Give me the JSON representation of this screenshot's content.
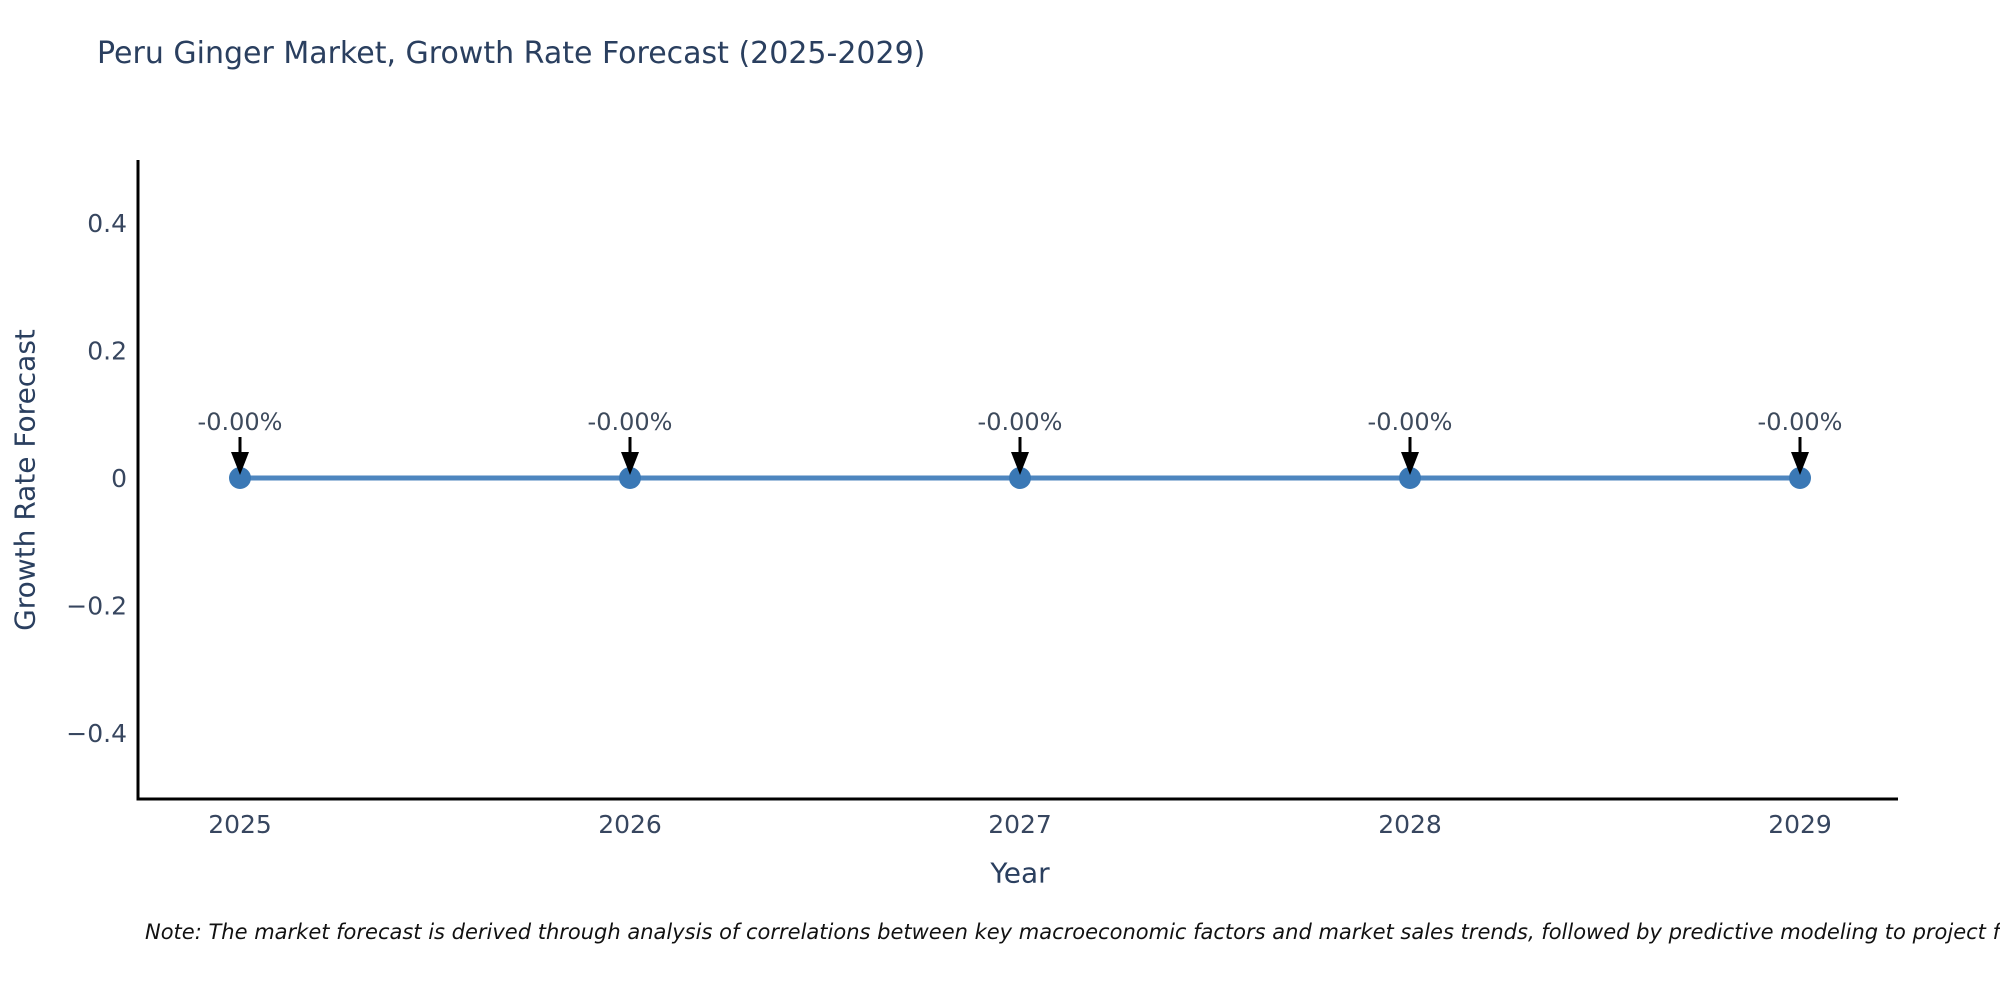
{
  "title": "Peru Ginger Market, Growth Rate Forecast (2025-2029)",
  "note": "Note: The market forecast is derived through analysis of correlations between key macroeconomic factors and market sales trends, followed by predictive modeling to project future sa",
  "chart_data": {
    "type": "line",
    "title": "Peru Ginger Market, Growth Rate Forecast (2025-2029)",
    "xlabel": "Year",
    "ylabel": "Growth Rate Forecast",
    "x": [
      2025,
      2026,
      2027,
      2028,
      2029
    ],
    "xtick_labels": [
      "2025",
      "2026",
      "2027",
      "2028",
      "2029"
    ],
    "values": [
      0,
      0,
      0,
      0,
      0
    ],
    "point_labels": [
      "-0.00%",
      "-0.00%",
      "-0.00%",
      "-0.00%",
      "-0.00%"
    ],
    "yticks": [
      0.4,
      0.2,
      0,
      -0.2,
      -0.4
    ],
    "ytick_labels": [
      "0.4",
      "0.2",
      "0",
      "−0.2",
      "−0.4"
    ],
    "ylim": [
      -0.5,
      0.5
    ],
    "grid": false,
    "legend": "none",
    "colors": {
      "line": "#4e86bf",
      "marker": "#3a78b5",
      "axis_spine": "#000000",
      "arrow": "#000000",
      "annotation_text": "#3d4a5c",
      "tick_text": "#37465f",
      "title_text": "#2a3f5f"
    }
  }
}
